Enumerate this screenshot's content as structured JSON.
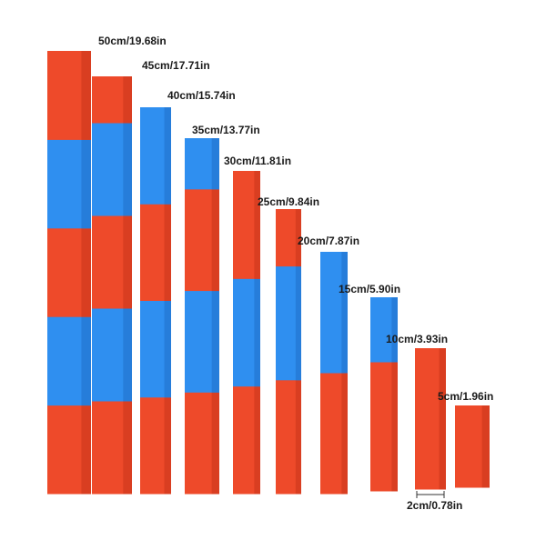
{
  "colors": {
    "red": "#ee4a2a",
    "red_dark": "#c9341a",
    "blue": "#2f8ff0",
    "blue_dark": "#1f6fc8",
    "background": "#ffffff"
  },
  "rods": [
    {
      "label": "50cm/19.68in",
      "segments": 5
    },
    {
      "label": "45cm/17.71in",
      "segments": 4.5
    },
    {
      "label": "40cm/15.74in",
      "segments": 4
    },
    {
      "label": "35cm/13.77in",
      "segments": 3.5
    },
    {
      "label": "30cm/11.81in",
      "segments": 3
    },
    {
      "label": "25cm/9.84in",
      "segments": 2.5
    },
    {
      "label": "20cm/7.87in",
      "segments": 2
    },
    {
      "label": "15cm/5.90in",
      "segments": 1.5
    },
    {
      "label": "10cm/3.93in",
      "segments": 1
    },
    {
      "label": "5cm/1.96in",
      "segments": 0.5
    }
  ],
  "width_label": "2cm/0.78in"
}
